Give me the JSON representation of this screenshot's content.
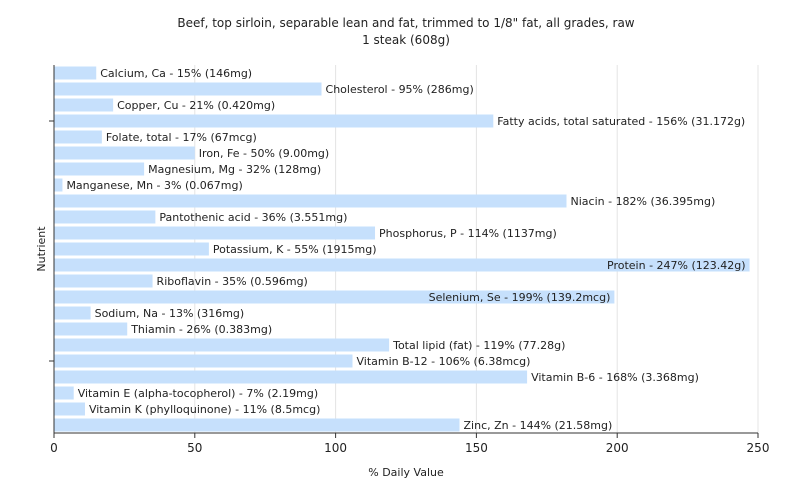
{
  "chart_data": {
    "type": "bar",
    "orientation": "horizontal",
    "title": "Beef, top sirloin, separable lean and fat, trimmed to 1/8\" fat, all grades, raw",
    "subtitle": "1 steak (608g)",
    "xlabel": "% Daily Value",
    "ylabel": "Nutrient",
    "xlim": [
      0,
      250
    ],
    "xticks": [
      0,
      50,
      100,
      150,
      200,
      250
    ],
    "grid": true,
    "bar_color": "#c6e0fc",
    "categories": [
      "Calcium, Ca",
      "Cholesterol",
      "Copper, Cu",
      "Fatty acids, total saturated",
      "Folate, total",
      "Iron, Fe",
      "Magnesium, Mg",
      "Manganese, Mn",
      "Niacin",
      "Pantothenic acid",
      "Phosphorus, P",
      "Potassium, K",
      "Protein",
      "Riboflavin",
      "Selenium, Se",
      "Sodium, Na",
      "Thiamin",
      "Total lipid (fat)",
      "Vitamin B-12",
      "Vitamin B-6",
      "Vitamin E (alpha-tocopherol)",
      "Vitamin K (phylloquinone)",
      "Zinc, Zn"
    ],
    "values": [
      15,
      95,
      21,
      156,
      17,
      50,
      32,
      3,
      182,
      36,
      114,
      55,
      247,
      35,
      199,
      13,
      26,
      119,
      106,
      168,
      7,
      11,
      144
    ],
    "labels": [
      "Calcium, Ca - 15% (146mg)",
      "Cholesterol - 95% (286mg)",
      "Copper, Cu - 21% (0.420mg)",
      "Fatty acids, total saturated - 156% (31.172g)",
      "Folate, total - 17% (67mcg)",
      "Iron, Fe - 50% (9.00mg)",
      "Magnesium, Mg - 32% (128mg)",
      "Manganese, Mn - 3% (0.067mg)",
      "Niacin - 182% (36.395mg)",
      "Pantothenic acid - 36% (3.551mg)",
      "Phosphorus, P - 114% (1137mg)",
      "Potassium, K - 55% (1915mg)",
      "Protein - 247% (123.42g)",
      "Riboflavin - 35% (0.596mg)",
      "Selenium, Se - 199% (139.2mcg)",
      "Sodium, Na - 13% (316mg)",
      "Thiamin - 26% (0.383mg)",
      "Total lipid (fat) - 119% (77.28g)",
      "Vitamin B-12 - 106% (6.38mcg)",
      "Vitamin B-6 - 168% (3.368mg)",
      "Vitamin E (alpha-tocopherol) - 7% (2.19mg)",
      "Vitamin K (phylloquinone) - 11% (8.5mcg)",
      "Zinc, Zn - 144% (21.58mg)"
    ]
  }
}
